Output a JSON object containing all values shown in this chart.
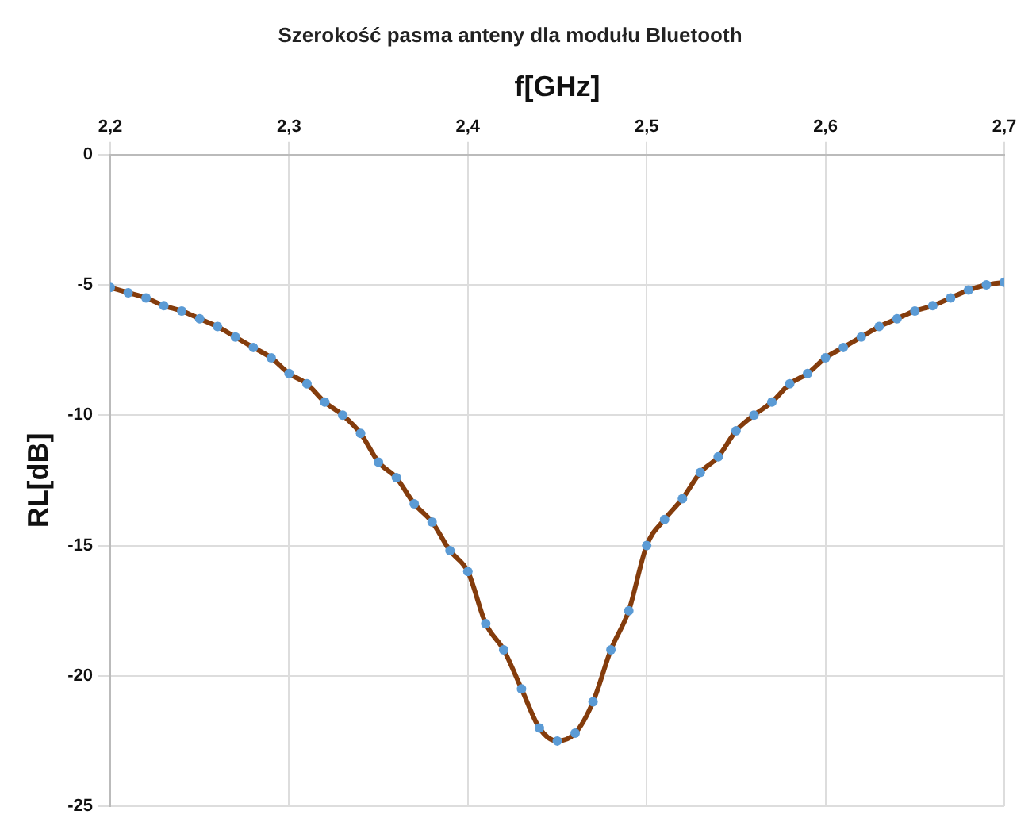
{
  "chart_data": {
    "type": "line",
    "title": "Szerokość pasma anteny dla modułu Bluetooth",
    "xlabel": "f[GHz]",
    "ylabel": "RL[dB]",
    "x": [
      2.2,
      2.21,
      2.22,
      2.23,
      2.24,
      2.25,
      2.26,
      2.27,
      2.28,
      2.29,
      2.3,
      2.31,
      2.32,
      2.33,
      2.34,
      2.35,
      2.36,
      2.37,
      2.38,
      2.39,
      2.4,
      2.41,
      2.42,
      2.43,
      2.44,
      2.45,
      2.46,
      2.47,
      2.48,
      2.49,
      2.5,
      2.51,
      2.52,
      2.53,
      2.54,
      2.55,
      2.56,
      2.57,
      2.58,
      2.59,
      2.6,
      2.61,
      2.62,
      2.63,
      2.64,
      2.65,
      2.66,
      2.67,
      2.68,
      2.69,
      2.7
    ],
    "series": [
      {
        "color": "#843c0c",
        "colors": [
          "#5b9bd5",
          "#5b9bd5",
          "#5b9bd5",
          "#5b9bd5",
          "#5b9bd5",
          "#5b9bd5",
          "#5b9bd5",
          "#5b9bd5",
          "#5b9bd5",
          "#5b9bd5",
          "#5b9bd5",
          "#5b9bd5",
          "#5b9bd5",
          "#5b9bd5",
          "#5b9bd5",
          "#5b9bd5",
          "#5b9bd5",
          "#5b9bd5",
          "#5b9bd5",
          "#5b9bd5",
          "#5b9bd5",
          "#5b9bd5",
          "#5b9bd5",
          "#5b9bd5",
          "#5b9bd5",
          "#5b9bd5",
          "#5b9bd5",
          "#5b9bd5",
          "#5b9bd5",
          "#5b9bd5",
          "#5b9bd5",
          "#5b9bd5",
          "#5b9bd5",
          "#5b9bd5",
          "#5b9bd5",
          "#5b9bd5",
          "#5b9bd5",
          "#5b9bd5",
          "#5b9bd5",
          "#5b9bd5",
          "#5b9bd5",
          "#5b9bd5",
          "#5b9bd5",
          "#5b9bd5",
          "#5b9bd5",
          "#5b9bd5",
          "#5b9bd5",
          "#5b9bd5",
          "#5b9bd5",
          "#5b9bd5",
          "#5b9bd5"
        ],
        "values": [
          -5.1,
          -5.3,
          -5.5,
          -5.8,
          -6.0,
          -6.3,
          -6.6,
          -7.0,
          -7.4,
          -7.8,
          -8.4,
          -8.8,
          -9.5,
          -10.0,
          -10.7,
          -11.8,
          -12.4,
          -13.4,
          -14.1,
          -15.2,
          -16.0,
          -18.0,
          -19.0,
          -20.5,
          -22.0,
          -22.5,
          -22.2,
          -21.0,
          -19.0,
          -17.5,
          -15.0,
          -14.0,
          -13.2,
          -12.2,
          -11.6,
          -10.6,
          -10.0,
          -9.5,
          -8.8,
          -8.4,
          -7.8,
          -7.4,
          -7.0,
          -6.6,
          -6.3,
          -6.0,
          -5.8,
          -5.5,
          -5.2,
          -5.0,
          -4.9
        ]
      }
    ],
    "xlim": [
      2.2,
      2.7
    ],
    "xticks": [
      {
        "value": 2.2,
        "label": "2,2"
      },
      {
        "value": 2.3,
        "label": "2,3"
      },
      {
        "value": 2.4,
        "label": "2,4"
      },
      {
        "value": 2.5,
        "label": "2,5"
      },
      {
        "value": 2.6,
        "label": "2,6"
      },
      {
        "value": 2.7,
        "label": "2,7"
      }
    ],
    "ylim": [
      -25,
      0
    ],
    "yticks": [
      0,
      -5,
      -10,
      -15,
      -20,
      -25
    ],
    "grid": true,
    "legend": false,
    "marker": "circle",
    "line_style": "solid"
  }
}
